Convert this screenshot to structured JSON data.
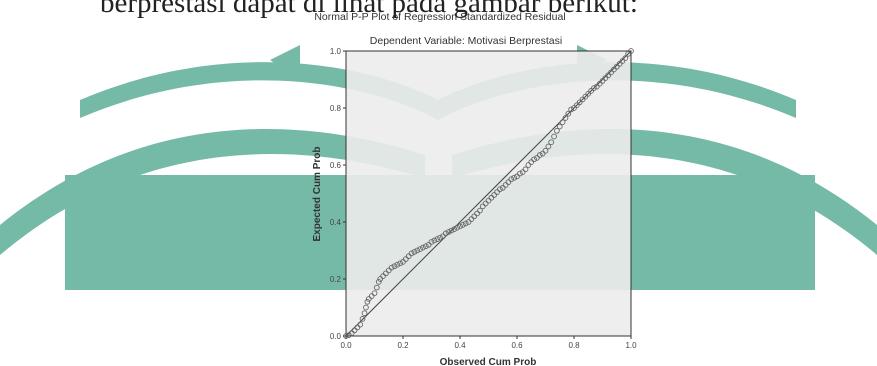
{
  "document": {
    "text_line": "berprestasi dapat di lihat pada gambar berikut:"
  },
  "colors": {
    "watermark": "#5cae98",
    "plot_background": "#ececec",
    "axis": "#333333",
    "points": "#666666",
    "reference_line": "#444444"
  },
  "chart_data": {
    "type": "scatter",
    "title": "Normal P-P Plot of Regression Standardized Residual",
    "subtitle": "Dependent Variable: Motivasi Berprestasi",
    "xlabel": "Observed Cum Prob",
    "ylabel": "Expected Cum Prob",
    "xlim": [
      0,
      1
    ],
    "ylim": [
      0,
      1
    ],
    "xticks": [
      "0.0",
      "0.2",
      "0.4",
      "0.6",
      "0.8",
      "1.0"
    ],
    "yticks": [
      "0.0",
      "0.2",
      "0.4",
      "0.6",
      "0.8",
      "1.0"
    ],
    "grid": false,
    "reference_line": {
      "from": [
        0,
        0
      ],
      "to": [
        1,
        1
      ]
    },
    "points": [
      [
        0,
        0
      ],
      [
        0.01,
        0.003
      ],
      [
        0.02,
        0.01
      ],
      [
        0.03,
        0.02
      ],
      [
        0.04,
        0.03
      ],
      [
        0.05,
        0.04
      ],
      [
        0.058,
        0.06
      ],
      [
        0.065,
        0.08
      ],
      [
        0.07,
        0.1
      ],
      [
        0.075,
        0.12
      ],
      [
        0.08,
        0.13
      ],
      [
        0.09,
        0.14
      ],
      [
        0.1,
        0.15
      ],
      [
        0.108,
        0.17
      ],
      [
        0.115,
        0.19
      ],
      [
        0.12,
        0.2
      ],
      [
        0.13,
        0.21
      ],
      [
        0.14,
        0.22
      ],
      [
        0.15,
        0.23
      ],
      [
        0.16,
        0.24
      ],
      [
        0.17,
        0.245
      ],
      [
        0.18,
        0.25
      ],
      [
        0.19,
        0.255
      ],
      [
        0.2,
        0.26
      ],
      [
        0.21,
        0.27
      ],
      [
        0.22,
        0.28
      ],
      [
        0.23,
        0.29
      ],
      [
        0.24,
        0.295
      ],
      [
        0.25,
        0.3
      ],
      [
        0.26,
        0.305
      ],
      [
        0.27,
        0.31
      ],
      [
        0.28,
        0.315
      ],
      [
        0.29,
        0.32
      ],
      [
        0.3,
        0.33
      ],
      [
        0.31,
        0.335
      ],
      [
        0.32,
        0.34
      ],
      [
        0.33,
        0.345
      ],
      [
        0.34,
        0.35
      ],
      [
        0.35,
        0.36
      ],
      [
        0.36,
        0.365
      ],
      [
        0.37,
        0.37
      ],
      [
        0.38,
        0.375
      ],
      [
        0.39,
        0.38
      ],
      [
        0.4,
        0.385
      ],
      [
        0.41,
        0.39
      ],
      [
        0.42,
        0.395
      ],
      [
        0.43,
        0.4
      ],
      [
        0.44,
        0.41
      ],
      [
        0.45,
        0.42
      ],
      [
        0.46,
        0.43
      ],
      [
        0.47,
        0.44
      ],
      [
        0.48,
        0.455
      ],
      [
        0.49,
        0.465
      ],
      [
        0.5,
        0.475
      ],
      [
        0.51,
        0.485
      ],
      [
        0.52,
        0.495
      ],
      [
        0.53,
        0.505
      ],
      [
        0.54,
        0.515
      ],
      [
        0.55,
        0.52
      ],
      [
        0.56,
        0.53
      ],
      [
        0.57,
        0.54
      ],
      [
        0.58,
        0.55
      ],
      [
        0.59,
        0.555
      ],
      [
        0.6,
        0.56
      ],
      [
        0.61,
        0.57
      ],
      [
        0.62,
        0.575
      ],
      [
        0.63,
        0.585
      ],
      [
        0.64,
        0.6
      ],
      [
        0.65,
        0.61
      ],
      [
        0.66,
        0.62
      ],
      [
        0.67,
        0.625
      ],
      [
        0.68,
        0.635
      ],
      [
        0.69,
        0.64
      ],
      [
        0.7,
        0.65
      ],
      [
        0.71,
        0.665
      ],
      [
        0.72,
        0.68
      ],
      [
        0.73,
        0.7
      ],
      [
        0.74,
        0.72
      ],
      [
        0.75,
        0.735
      ],
      [
        0.76,
        0.75
      ],
      [
        0.77,
        0.765
      ],
      [
        0.78,
        0.78
      ],
      [
        0.79,
        0.795
      ],
      [
        0.8,
        0.8
      ],
      [
        0.81,
        0.81
      ],
      [
        0.82,
        0.82
      ],
      [
        0.83,
        0.83
      ],
      [
        0.84,
        0.84
      ],
      [
        0.85,
        0.85
      ],
      [
        0.86,
        0.86
      ],
      [
        0.87,
        0.87
      ],
      [
        0.88,
        0.875
      ],
      [
        0.89,
        0.885
      ],
      [
        0.9,
        0.895
      ],
      [
        0.91,
        0.905
      ],
      [
        0.92,
        0.915
      ],
      [
        0.93,
        0.925
      ],
      [
        0.94,
        0.935
      ],
      [
        0.95,
        0.945
      ],
      [
        0.96,
        0.955
      ],
      [
        0.97,
        0.965
      ],
      [
        0.98,
        0.975
      ],
      [
        0.99,
        0.99
      ],
      [
        1.0,
        1.0
      ]
    ]
  }
}
